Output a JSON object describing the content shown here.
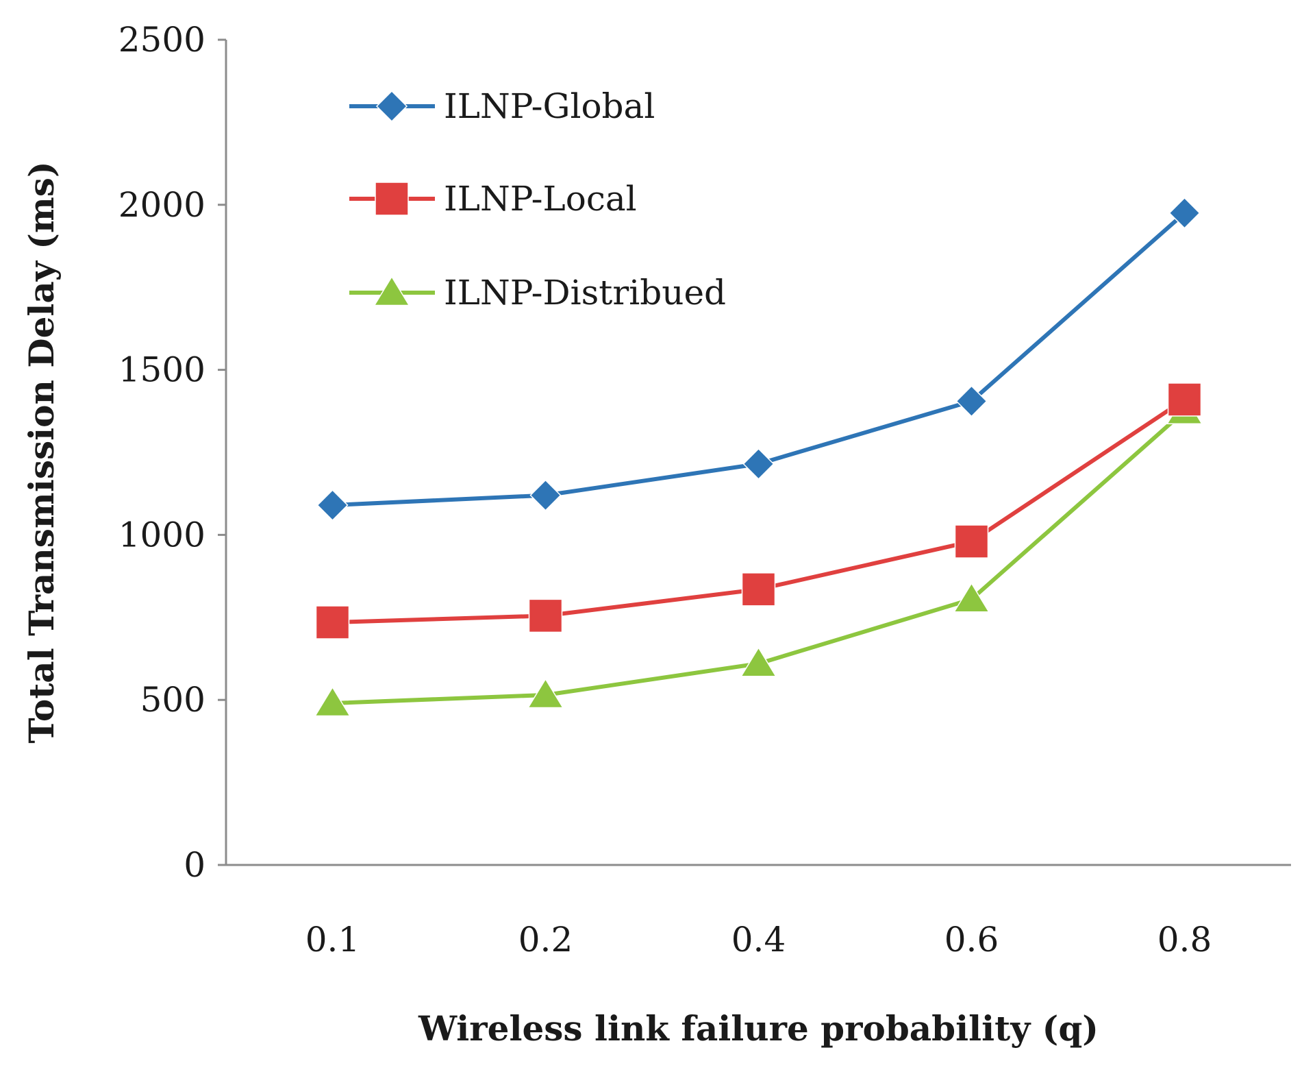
{
  "chart_data": {
    "type": "line",
    "title": "",
    "xlabel": "Wireless link failure probability  (q)",
    "ylabel": "Total Transmission Delay (ms)",
    "categories": [
      "0.1",
      "0.2",
      "0.4",
      "0.6",
      "0.8"
    ],
    "ylim": [
      0,
      2500
    ],
    "yticks": [
      "0",
      "500",
      "1000",
      "1500",
      "2000",
      "2500"
    ],
    "grid": false,
    "legend_position": "top-left",
    "series": [
      {
        "name": "ILNP-Global",
        "marker": "diamond",
        "color": "#2E75B6",
        "values": [
          1090,
          1120,
          1215,
          1405,
          1975
        ]
      },
      {
        "name": "ILNP-Local",
        "marker": "square",
        "color": "#E0403F",
        "values": [
          735,
          755,
          835,
          980,
          1410
        ]
      },
      {
        "name": "ILNP-Distribued",
        "marker": "triangle",
        "color": "#8DC63F",
        "values": [
          490,
          515,
          610,
          805,
          1375
        ]
      }
    ]
  }
}
